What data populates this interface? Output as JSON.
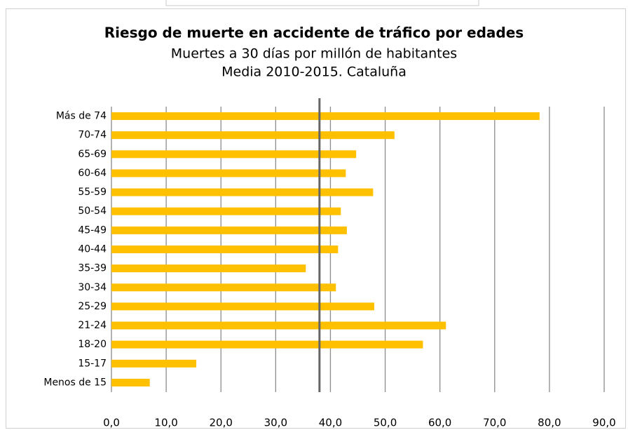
{
  "chart_data": {
    "type": "bar",
    "orientation": "horizontal",
    "title": "Riesgo de muerte en accidente de tráfico por edades",
    "subtitle": [
      "Muertes a 30 días por millón de habitantes",
      "Media 2010-2015. Cataluña"
    ],
    "categories": [
      "Más de 74",
      "70-74",
      "65-69",
      "60-64",
      "55-59",
      "50-54",
      "45-49",
      "40-44",
      "35-39",
      "30-34",
      "25-29",
      "21-24",
      "18-20",
      "15-17",
      "Menos de 15"
    ],
    "values": [
      78.2,
      51.7,
      44.7,
      42.8,
      47.8,
      41.9,
      43.0,
      41.4,
      35.5,
      41.0,
      48.0,
      61.1,
      56.9,
      15.5,
      7.0
    ],
    "color": "#ffc000",
    "reference_line": 38.0,
    "xlim": [
      0,
      90
    ],
    "xticks": [
      {
        "value": 0,
        "label": "0,0"
      },
      {
        "value": 10,
        "label": "10,0"
      },
      {
        "value": 20,
        "label": "20,0"
      },
      {
        "value": 30,
        "label": "30,0"
      },
      {
        "value": 40,
        "label": "40,0"
      },
      {
        "value": 50,
        "label": "50,0"
      },
      {
        "value": 60,
        "label": "60,0"
      },
      {
        "value": 70,
        "label": "70,0"
      },
      {
        "value": 80,
        "label": "80,0"
      },
      {
        "value": 90,
        "label": "90,0"
      }
    ],
    "grid": true
  }
}
